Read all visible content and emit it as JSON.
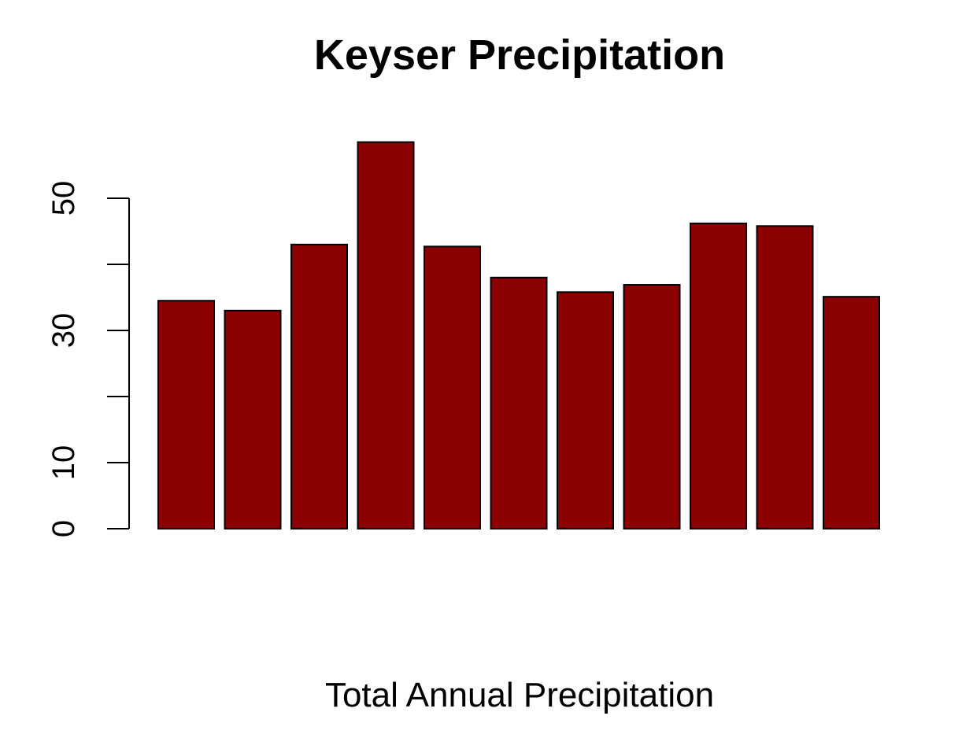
{
  "chart_data": {
    "type": "bar",
    "title": "Keyser Precipitation",
    "xlabel": "Total Annual Precipitation",
    "ylabel": "",
    "ylim": [
      0,
      60
    ],
    "yticks": [
      0,
      10,
      20,
      30,
      40,
      50
    ],
    "ytick_labels": [
      "0",
      "10",
      "",
      "30",
      "",
      "50"
    ],
    "values": [
      34.5,
      33.0,
      43.0,
      58.5,
      42.7,
      38.0,
      35.8,
      36.9,
      46.2,
      45.8,
      35.1
    ],
    "bar_color": "#8B0000",
    "border_color": "#000000",
    "grid": false,
    "legend": "none"
  }
}
